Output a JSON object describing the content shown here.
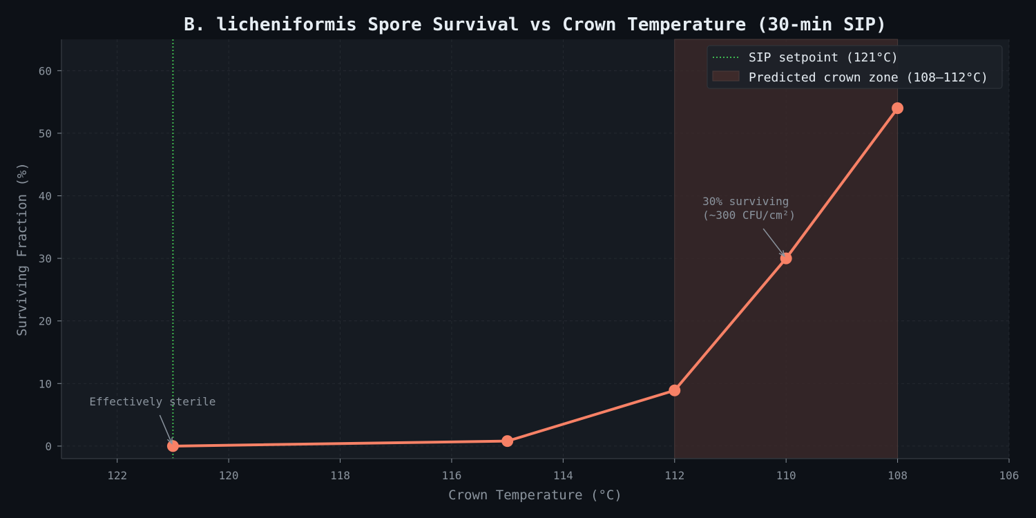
{
  "chart_data": {
    "type": "line",
    "title": "B. licheniformis Spore Survival vs Crown Temperature (30-min SIP)",
    "xlabel": "Crown Temperature (°C)",
    "ylabel": "Surviving Fraction (%)",
    "xlim": [
      123,
      106
    ],
    "ylim": [
      -2,
      65
    ],
    "x_inverted": true,
    "xticks": [
      122,
      120,
      118,
      116,
      114,
      112,
      110,
      108,
      106
    ],
    "yticks": [
      0,
      10,
      20,
      30,
      40,
      50,
      60
    ],
    "grid": true,
    "legend_position": "top-right",
    "series": [
      {
        "x": [
          121,
          115,
          112,
          110,
          108
        ],
        "y": [
          0,
          0.8,
          8.9,
          30,
          54
        ],
        "color": "#f78166"
      }
    ],
    "reference_line": {
      "x": 121,
      "label": "SIP setpoint (121°C)",
      "color": "#3fb950",
      "style": "dotted"
    },
    "shaded_region": {
      "x_range": [
        112,
        108
      ],
      "label": "Predicted crown zone (108–112°C)",
      "color": "#3a2626"
    },
    "annotations": [
      {
        "lines": [
          "Effectively sterile"
        ],
        "target": [
          121,
          0
        ],
        "text_at": [
          122.5,
          6.5
        ]
      },
      {
        "lines": [
          "30% surviving",
          "(~300 CFU/cm²)"
        ],
        "target": [
          110,
          30
        ],
        "text_at": [
          111.5,
          38.5
        ]
      }
    ]
  }
}
